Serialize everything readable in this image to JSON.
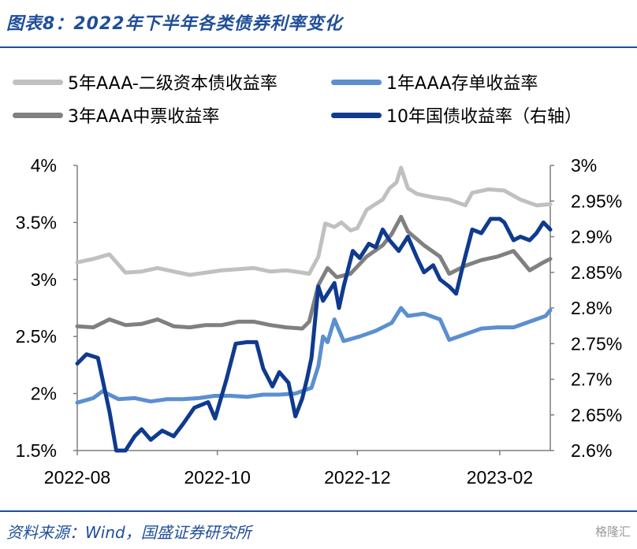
{
  "header": {
    "title": "图表8：2022年下半年各类债券利率变化"
  },
  "footer": {
    "source": "资料来源：Wind，国盛证券研究所",
    "watermark": "格隆汇"
  },
  "colors": {
    "accent": "#1f4e9a",
    "s5y": "#c0c0c0",
    "s1y": "#5b8fd0",
    "s3y": "#808080",
    "s10y": "#0f3a8f"
  },
  "chart_data": {
    "type": "line",
    "title": "图表8：2022年下半年各类债券利率变化",
    "x_tick_labels": [
      "2022-08",
      "2022-10",
      "2022-12",
      "2023-02"
    ],
    "x_tick_dates": [
      "2022-08-01",
      "2022-10-01",
      "2022-12-01",
      "2023-02-01"
    ],
    "x_range": [
      "2022-08-01",
      "2023-02-23"
    ],
    "y_left": {
      "range": [
        1.5,
        4.0
      ],
      "ticks": [
        "1.5%",
        "2%",
        "2.5%",
        "3%",
        "3.5%",
        "4%"
      ],
      "tick_values": [
        1.5,
        2.0,
        2.5,
        3.0,
        3.5,
        4.0
      ]
    },
    "y_right": {
      "range": [
        2.6,
        3.0
      ],
      "ticks": [
        "2.6%",
        "2.65%",
        "2.7%",
        "2.75%",
        "2.8%",
        "2.85%",
        "2.9%",
        "2.95%",
        "3%"
      ],
      "tick_values": [
        2.6,
        2.65,
        2.7,
        2.75,
        2.8,
        2.85,
        2.9,
        2.95,
        3.0
      ]
    },
    "grid": false,
    "legend_position": "top",
    "series": [
      {
        "name": "5年AAA-二级资本债收益率",
        "axis": "left",
        "color": "#c0c0c0",
        "points": [
          [
            "2022-08-01",
            3.15
          ],
          [
            "2022-08-08",
            3.18
          ],
          [
            "2022-08-15",
            3.22
          ],
          [
            "2022-08-22",
            3.06
          ],
          [
            "2022-08-29",
            3.07
          ],
          [
            "2022-09-05",
            3.1
          ],
          [
            "2022-09-12",
            3.07
          ],
          [
            "2022-09-19",
            3.04
          ],
          [
            "2022-09-26",
            3.06
          ],
          [
            "2022-10-03",
            3.08
          ],
          [
            "2022-10-10",
            3.09
          ],
          [
            "2022-10-17",
            3.1
          ],
          [
            "2022-10-24",
            3.07
          ],
          [
            "2022-10-31",
            3.08
          ],
          [
            "2022-11-07",
            3.06
          ],
          [
            "2022-11-10",
            3.05
          ],
          [
            "2022-11-14",
            3.2
          ],
          [
            "2022-11-17",
            3.49
          ],
          [
            "2022-11-21",
            3.46
          ],
          [
            "2022-11-24",
            3.5
          ],
          [
            "2022-11-28",
            3.43
          ],
          [
            "2022-12-01",
            3.45
          ],
          [
            "2022-12-05",
            3.61
          ],
          [
            "2022-12-08",
            3.65
          ],
          [
            "2022-12-12",
            3.7
          ],
          [
            "2022-12-15",
            3.8
          ],
          [
            "2022-12-18",
            3.85
          ],
          [
            "2022-12-20",
            3.98
          ],
          [
            "2022-12-23",
            3.8
          ],
          [
            "2022-12-27",
            3.75
          ],
          [
            "2023-01-03",
            3.72
          ],
          [
            "2023-01-10",
            3.7
          ],
          [
            "2023-01-17",
            3.65
          ],
          [
            "2023-01-20",
            3.76
          ],
          [
            "2023-01-27",
            3.79
          ],
          [
            "2023-02-03",
            3.78
          ],
          [
            "2023-02-10",
            3.7
          ],
          [
            "2023-02-17",
            3.65
          ],
          [
            "2023-02-23",
            3.66
          ]
        ]
      },
      {
        "name": "1年AAA存单收益率",
        "axis": "left",
        "color": "#5b8fd0",
        "points": [
          [
            "2022-08-01",
            1.92
          ],
          [
            "2022-08-08",
            1.96
          ],
          [
            "2022-08-12",
            2.02
          ],
          [
            "2022-08-19",
            1.95
          ],
          [
            "2022-08-26",
            1.96
          ],
          [
            "2022-09-02",
            1.93
          ],
          [
            "2022-09-09",
            1.95
          ],
          [
            "2022-09-16",
            1.95
          ],
          [
            "2022-09-23",
            1.96
          ],
          [
            "2022-09-30",
            1.98
          ],
          [
            "2022-10-07",
            1.98
          ],
          [
            "2022-10-14",
            1.97
          ],
          [
            "2022-10-21",
            1.99
          ],
          [
            "2022-10-28",
            1.99
          ],
          [
            "2022-11-04",
            2.0
          ],
          [
            "2022-11-11",
            2.05
          ],
          [
            "2022-11-14",
            2.24
          ],
          [
            "2022-11-16",
            2.5
          ],
          [
            "2022-11-18",
            2.45
          ],
          [
            "2022-11-21",
            2.65
          ],
          [
            "2022-11-25",
            2.46
          ],
          [
            "2022-12-02",
            2.5
          ],
          [
            "2022-12-09",
            2.55
          ],
          [
            "2022-12-16",
            2.62
          ],
          [
            "2022-12-20",
            2.75
          ],
          [
            "2022-12-23",
            2.68
          ],
          [
            "2022-12-30",
            2.7
          ],
          [
            "2023-01-06",
            2.65
          ],
          [
            "2023-01-10",
            2.47
          ],
          [
            "2023-01-17",
            2.52
          ],
          [
            "2023-01-24",
            2.57
          ],
          [
            "2023-01-31",
            2.58
          ],
          [
            "2023-02-07",
            2.58
          ],
          [
            "2023-02-14",
            2.63
          ],
          [
            "2023-02-21",
            2.68
          ],
          [
            "2023-02-23",
            2.73
          ]
        ]
      },
      {
        "name": "3年AAA中票收益率",
        "axis": "left",
        "color": "#808080",
        "points": [
          [
            "2022-08-01",
            2.59
          ],
          [
            "2022-08-08",
            2.58
          ],
          [
            "2022-08-15",
            2.65
          ],
          [
            "2022-08-22",
            2.6
          ],
          [
            "2022-08-29",
            2.61
          ],
          [
            "2022-09-05",
            2.65
          ],
          [
            "2022-09-12",
            2.59
          ],
          [
            "2022-09-19",
            2.58
          ],
          [
            "2022-09-26",
            2.6
          ],
          [
            "2022-10-03",
            2.6
          ],
          [
            "2022-10-10",
            2.63
          ],
          [
            "2022-10-17",
            2.63
          ],
          [
            "2022-10-24",
            2.6
          ],
          [
            "2022-10-31",
            2.58
          ],
          [
            "2022-11-07",
            2.57
          ],
          [
            "2022-11-10",
            2.63
          ],
          [
            "2022-11-14",
            2.95
          ],
          [
            "2022-11-18",
            3.1
          ],
          [
            "2022-11-22",
            3.02
          ],
          [
            "2022-11-28",
            3.05
          ],
          [
            "2022-12-05",
            3.2
          ],
          [
            "2022-12-12",
            3.3
          ],
          [
            "2022-12-16",
            3.4
          ],
          [
            "2022-12-20",
            3.55
          ],
          [
            "2022-12-23",
            3.42
          ],
          [
            "2022-12-30",
            3.3
          ],
          [
            "2023-01-06",
            3.2
          ],
          [
            "2023-01-10",
            3.05
          ],
          [
            "2023-01-17",
            3.12
          ],
          [
            "2023-01-24",
            3.17
          ],
          [
            "2023-01-31",
            3.2
          ],
          [
            "2023-02-07",
            3.25
          ],
          [
            "2023-02-14",
            3.08
          ],
          [
            "2023-02-20",
            3.15
          ],
          [
            "2023-02-23",
            3.18
          ]
        ]
      },
      {
        "name": "10年国债收益率（右轴）",
        "axis": "right",
        "color": "#0f3a8f",
        "points": [
          [
            "2022-08-01",
            2.722
          ],
          [
            "2022-08-05",
            2.735
          ],
          [
            "2022-08-10",
            2.73
          ],
          [
            "2022-08-15",
            2.655
          ],
          [
            "2022-08-18",
            2.565
          ],
          [
            "2022-08-22",
            2.575
          ],
          [
            "2022-08-26",
            2.62
          ],
          [
            "2022-08-29",
            2.63
          ],
          [
            "2022-09-02",
            2.615
          ],
          [
            "2022-09-07",
            2.628
          ],
          [
            "2022-09-12",
            2.62
          ],
          [
            "2022-09-16",
            2.637
          ],
          [
            "2022-09-21",
            2.66
          ],
          [
            "2022-09-27",
            2.668
          ],
          [
            "2022-09-30",
            2.645
          ],
          [
            "2022-10-05",
            2.7
          ],
          [
            "2022-10-09",
            2.75
          ],
          [
            "2022-10-14",
            2.752
          ],
          [
            "2022-10-18",
            2.752
          ],
          [
            "2022-10-21",
            2.715
          ],
          [
            "2022-10-25",
            2.69
          ],
          [
            "2022-10-28",
            2.71
          ],
          [
            "2022-11-01",
            2.695
          ],
          [
            "2022-11-04",
            2.648
          ],
          [
            "2022-11-07",
            2.673
          ],
          [
            "2022-11-09",
            2.7
          ],
          [
            "2022-11-11",
            2.73
          ],
          [
            "2022-11-14",
            2.83
          ],
          [
            "2022-11-16",
            2.81
          ],
          [
            "2022-11-18",
            2.82
          ],
          [
            "2022-11-21",
            2.835
          ],
          [
            "2022-11-23",
            2.8
          ],
          [
            "2022-11-25",
            2.83
          ],
          [
            "2022-11-29",
            2.88
          ],
          [
            "2022-12-02",
            2.87
          ],
          [
            "2022-12-06",
            2.89
          ],
          [
            "2022-12-09",
            2.885
          ],
          [
            "2022-12-12",
            2.91
          ],
          [
            "2022-12-15",
            2.895
          ],
          [
            "2022-12-19",
            2.88
          ],
          [
            "2022-12-23",
            2.9
          ],
          [
            "2022-12-27",
            2.87
          ],
          [
            "2022-12-30",
            2.85
          ],
          [
            "2023-01-03",
            2.86
          ],
          [
            "2023-01-06",
            2.84
          ],
          [
            "2023-01-10",
            2.83
          ],
          [
            "2023-01-13",
            2.82
          ],
          [
            "2023-01-16",
            2.86
          ],
          [
            "2023-01-20",
            2.91
          ],
          [
            "2023-01-24",
            2.905
          ],
          [
            "2023-01-28",
            2.925
          ],
          [
            "2023-02-01",
            2.925
          ],
          [
            "2023-02-03",
            2.92
          ],
          [
            "2023-02-07",
            2.895
          ],
          [
            "2023-02-10",
            2.9
          ],
          [
            "2023-02-14",
            2.895
          ],
          [
            "2023-02-17",
            2.905
          ],
          [
            "2023-02-20",
            2.92
          ],
          [
            "2023-02-23",
            2.91
          ]
        ]
      }
    ]
  }
}
